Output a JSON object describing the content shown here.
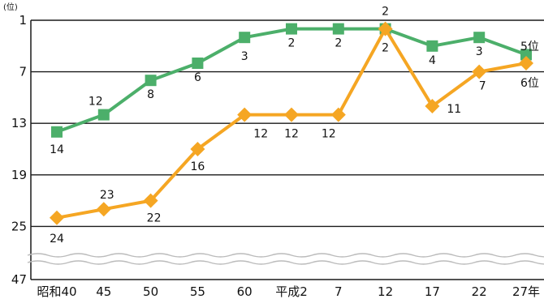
{
  "chart_data": {
    "type": "line",
    "y_unit": "(位)",
    "y_ticks": [
      "1",
      "7",
      "13",
      "19",
      "25",
      "47"
    ],
    "y_reversed": true,
    "y_axis_break": "between 25 and 47",
    "categories": [
      "昭和40",
      "45",
      "50",
      "55",
      "60",
      "平成2",
      "7",
      "12",
      "17",
      "22",
      "27年"
    ],
    "series": [
      {
        "color": "#4caf6a",
        "marker": "square",
        "values": [
          14,
          12,
          8,
          6,
          3,
          2,
          2,
          2,
          4,
          3,
          5
        ],
        "labels": [
          "14",
          "12",
          "8",
          "6",
          "3",
          "2",
          "2",
          "2",
          "4",
          "3",
          "5位"
        ]
      },
      {
        "color": "#f5a623",
        "marker": "diamond",
        "values": [
          24,
          23,
          22,
          16,
          12,
          12,
          12,
          2,
          11,
          7,
          6
        ],
        "labels": [
          "24",
          "23",
          "22",
          "16",
          "12",
          "12",
          "12",
          "2",
          "11",
          "7",
          "6位"
        ]
      }
    ],
    "grid": true,
    "gridline_color": "#1a1a1a",
    "break_color": "#bbbbbb"
  }
}
